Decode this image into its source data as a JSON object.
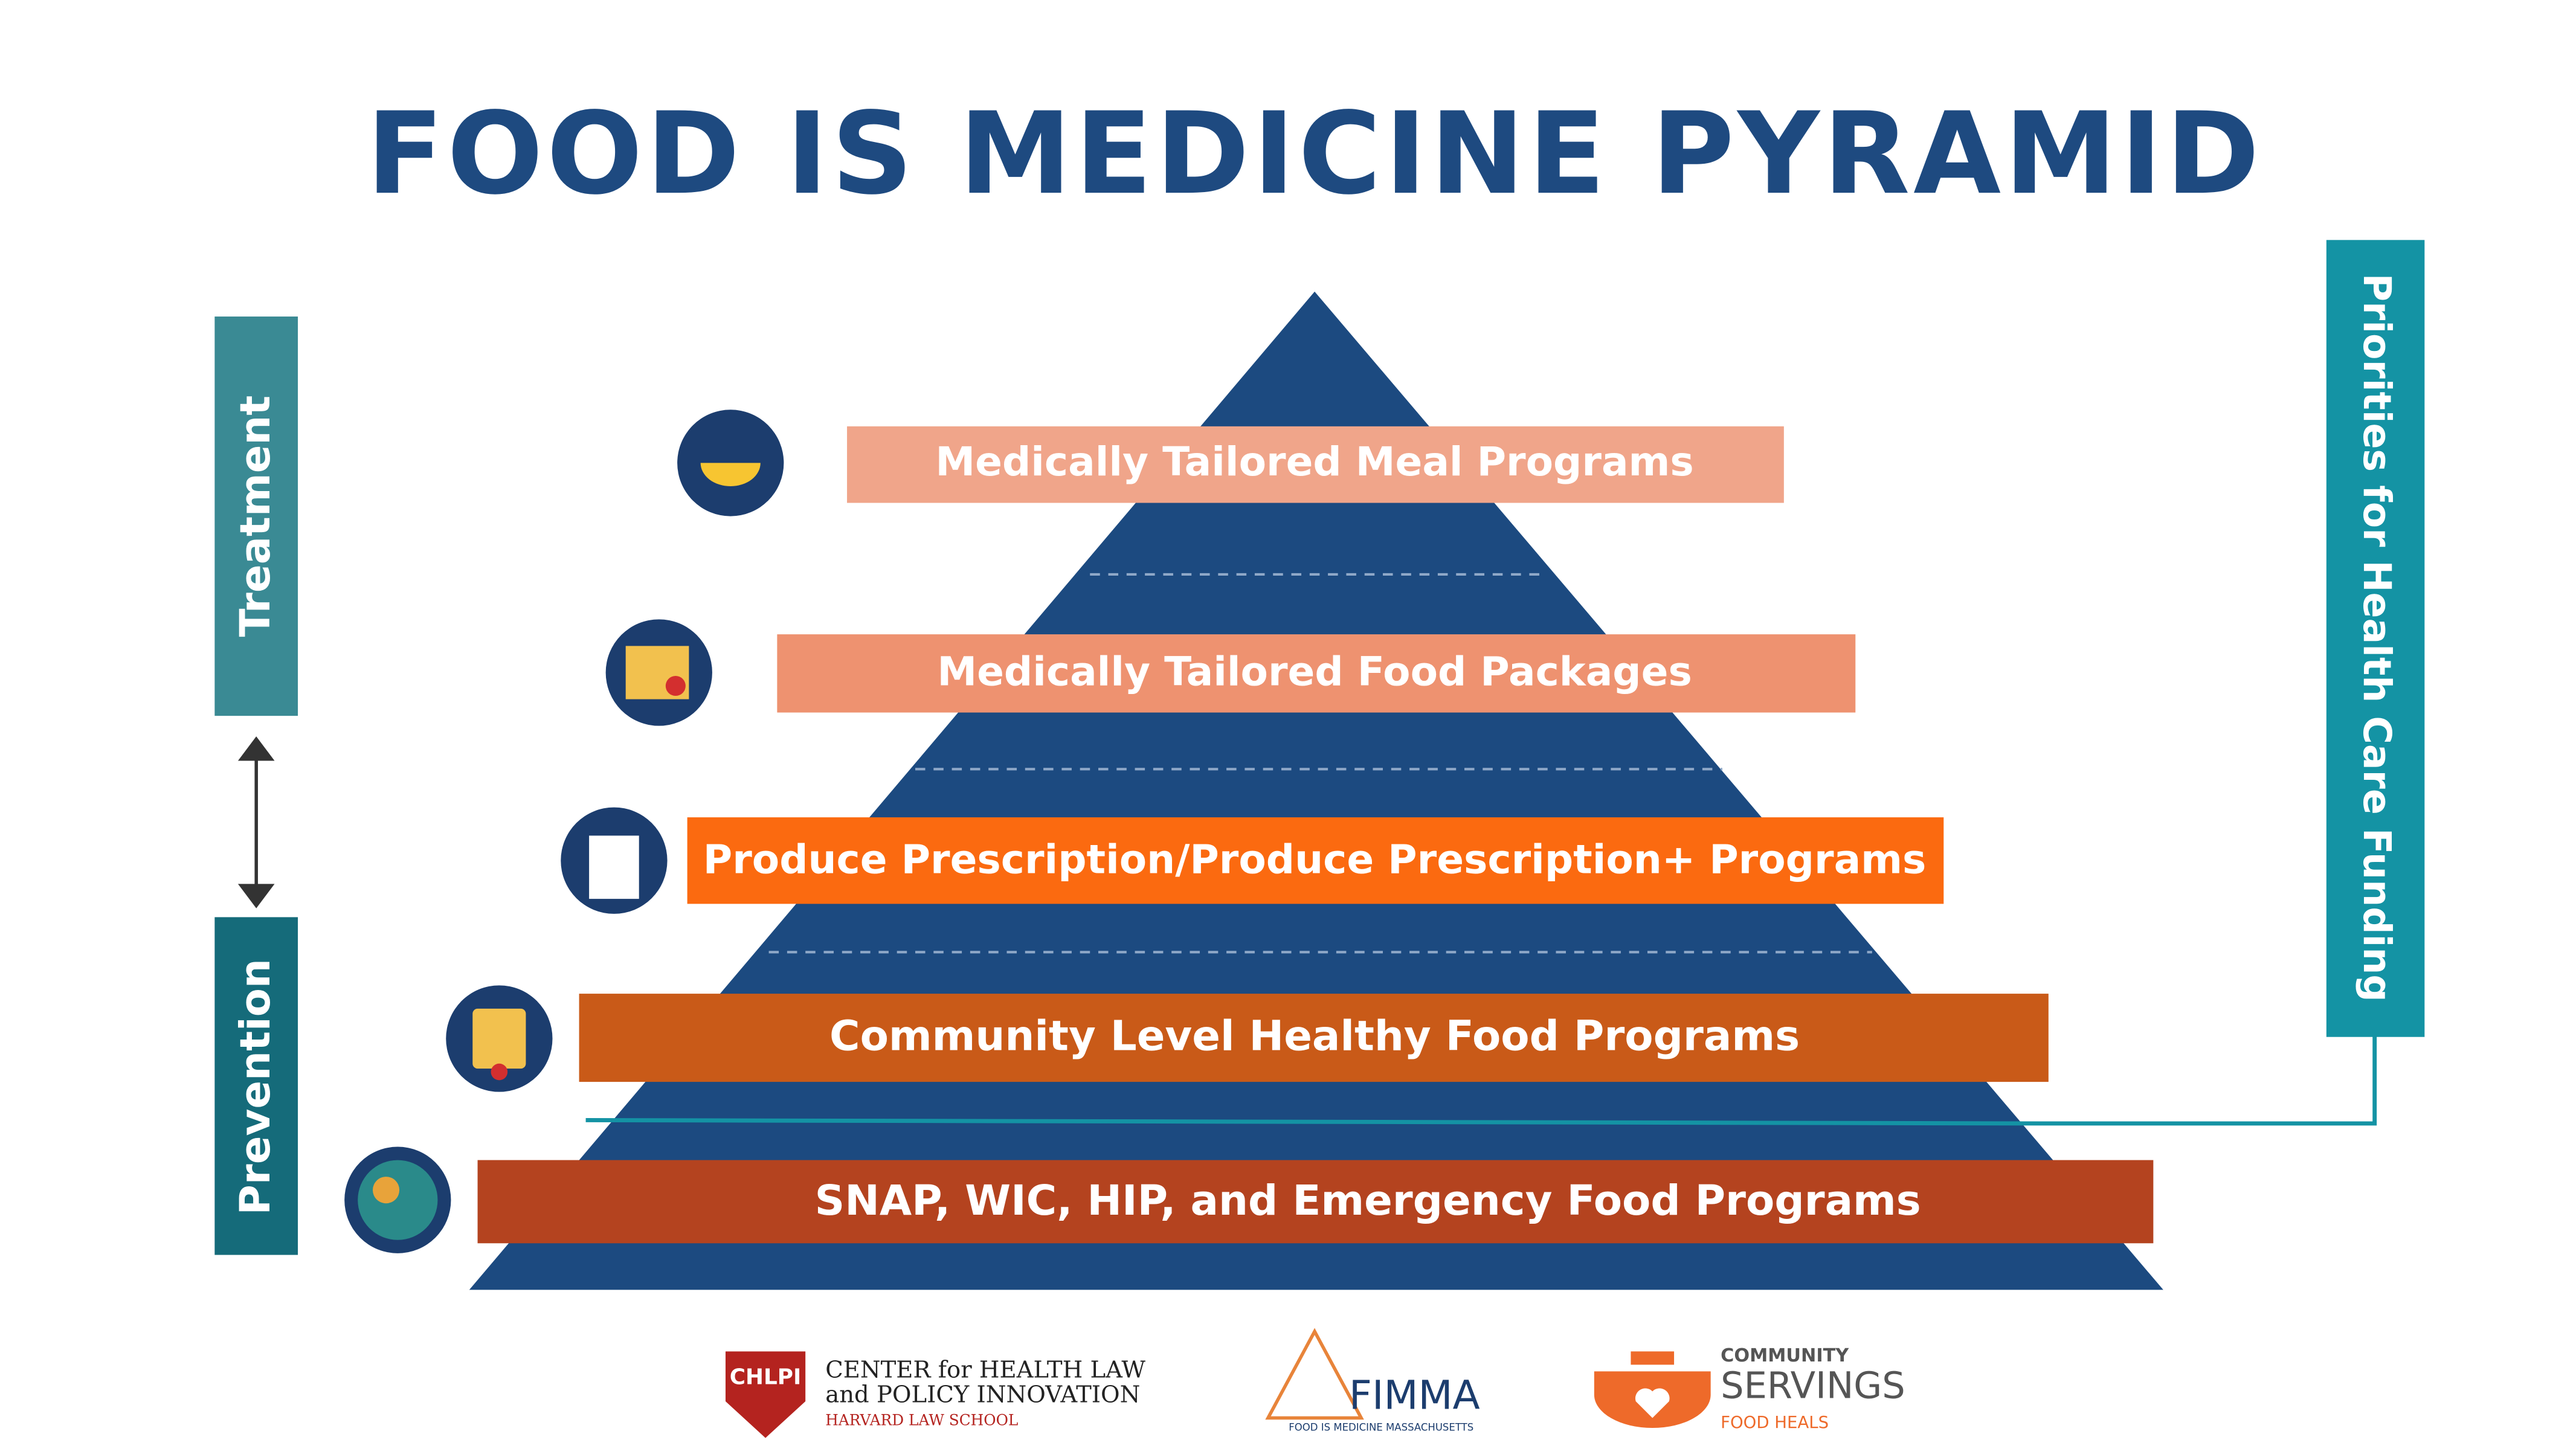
{
  "header": {
    "title": "FOOD IS MEDICINE PYRAMID"
  },
  "side_labels": {
    "left_top": "Treatment",
    "left_bottom": "Prevention",
    "right": "Priorities for Health Care Funding"
  },
  "levels": [
    {
      "label": "Medically Tailored Meal Programs"
    },
    {
      "label": "Medically Tailored Food Packages"
    },
    {
      "label": "Produce Prescription/Produce Prescription+ Programs"
    },
    {
      "label": "Community Level Healthy Food Programs"
    },
    {
      "label": "SNAP, WIC, HIP, and Emergency Food Programs"
    }
  ],
  "logos": {
    "chlpi": {
      "mark": "CHLPI",
      "line1": "CENTER for HEALTH LAW",
      "line2": "and POLICY INNOVATION",
      "line3": "HARVARD LAW SCHOOL"
    },
    "fimma": {
      "mark": "FIMMA",
      "tagline": "FOOD IS MEDICINE MASSACHUSETTS"
    },
    "community_servings": {
      "line1": "COMMUNITY",
      "line2": "SERVINGS",
      "line3": "FOOD HEALS"
    }
  }
}
